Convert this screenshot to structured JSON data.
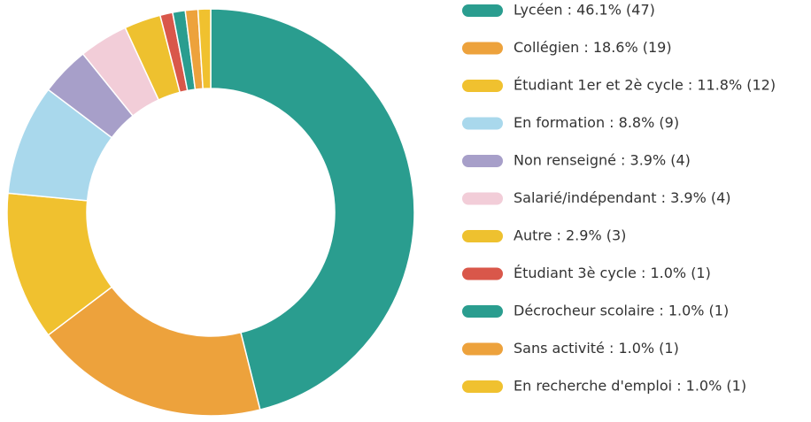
{
  "chart_data": {
    "type": "donut",
    "categories": [
      "Lycéen : 46.1% (47)",
      "Collégien : 18.6% (19)",
      "Étudiant 1er et 2è cycle : 11.8% (12)",
      "En formation : 8.8% (9)",
      "Non renseigné : 3.9% (4)",
      "Salarié/indépendant : 3.9% (4)",
      "Autre : 2.9% (3)",
      "Étudiant 3è cycle : 1.0% (1)",
      "Décrocheur scolaire : 1.0% (1)",
      "Sans activité : 1.0% (1)",
      "En recherche d'emploi : 1.0% (1)"
    ],
    "values": [
      46.1,
      18.6,
      11.8,
      8.8,
      3.9,
      3.9,
      2.9,
      1.0,
      1.0,
      1.0,
      1.0
    ],
    "colors": [
      "#2a9d8f",
      "#eda23c",
      "#f0c12f",
      "#a9d8ec",
      "#a79fc9",
      "#f2cdd8",
      "#eec12f",
      "#d9574a",
      "#2a9d8f",
      "#eda23c",
      "#f0c12f"
    ]
  }
}
